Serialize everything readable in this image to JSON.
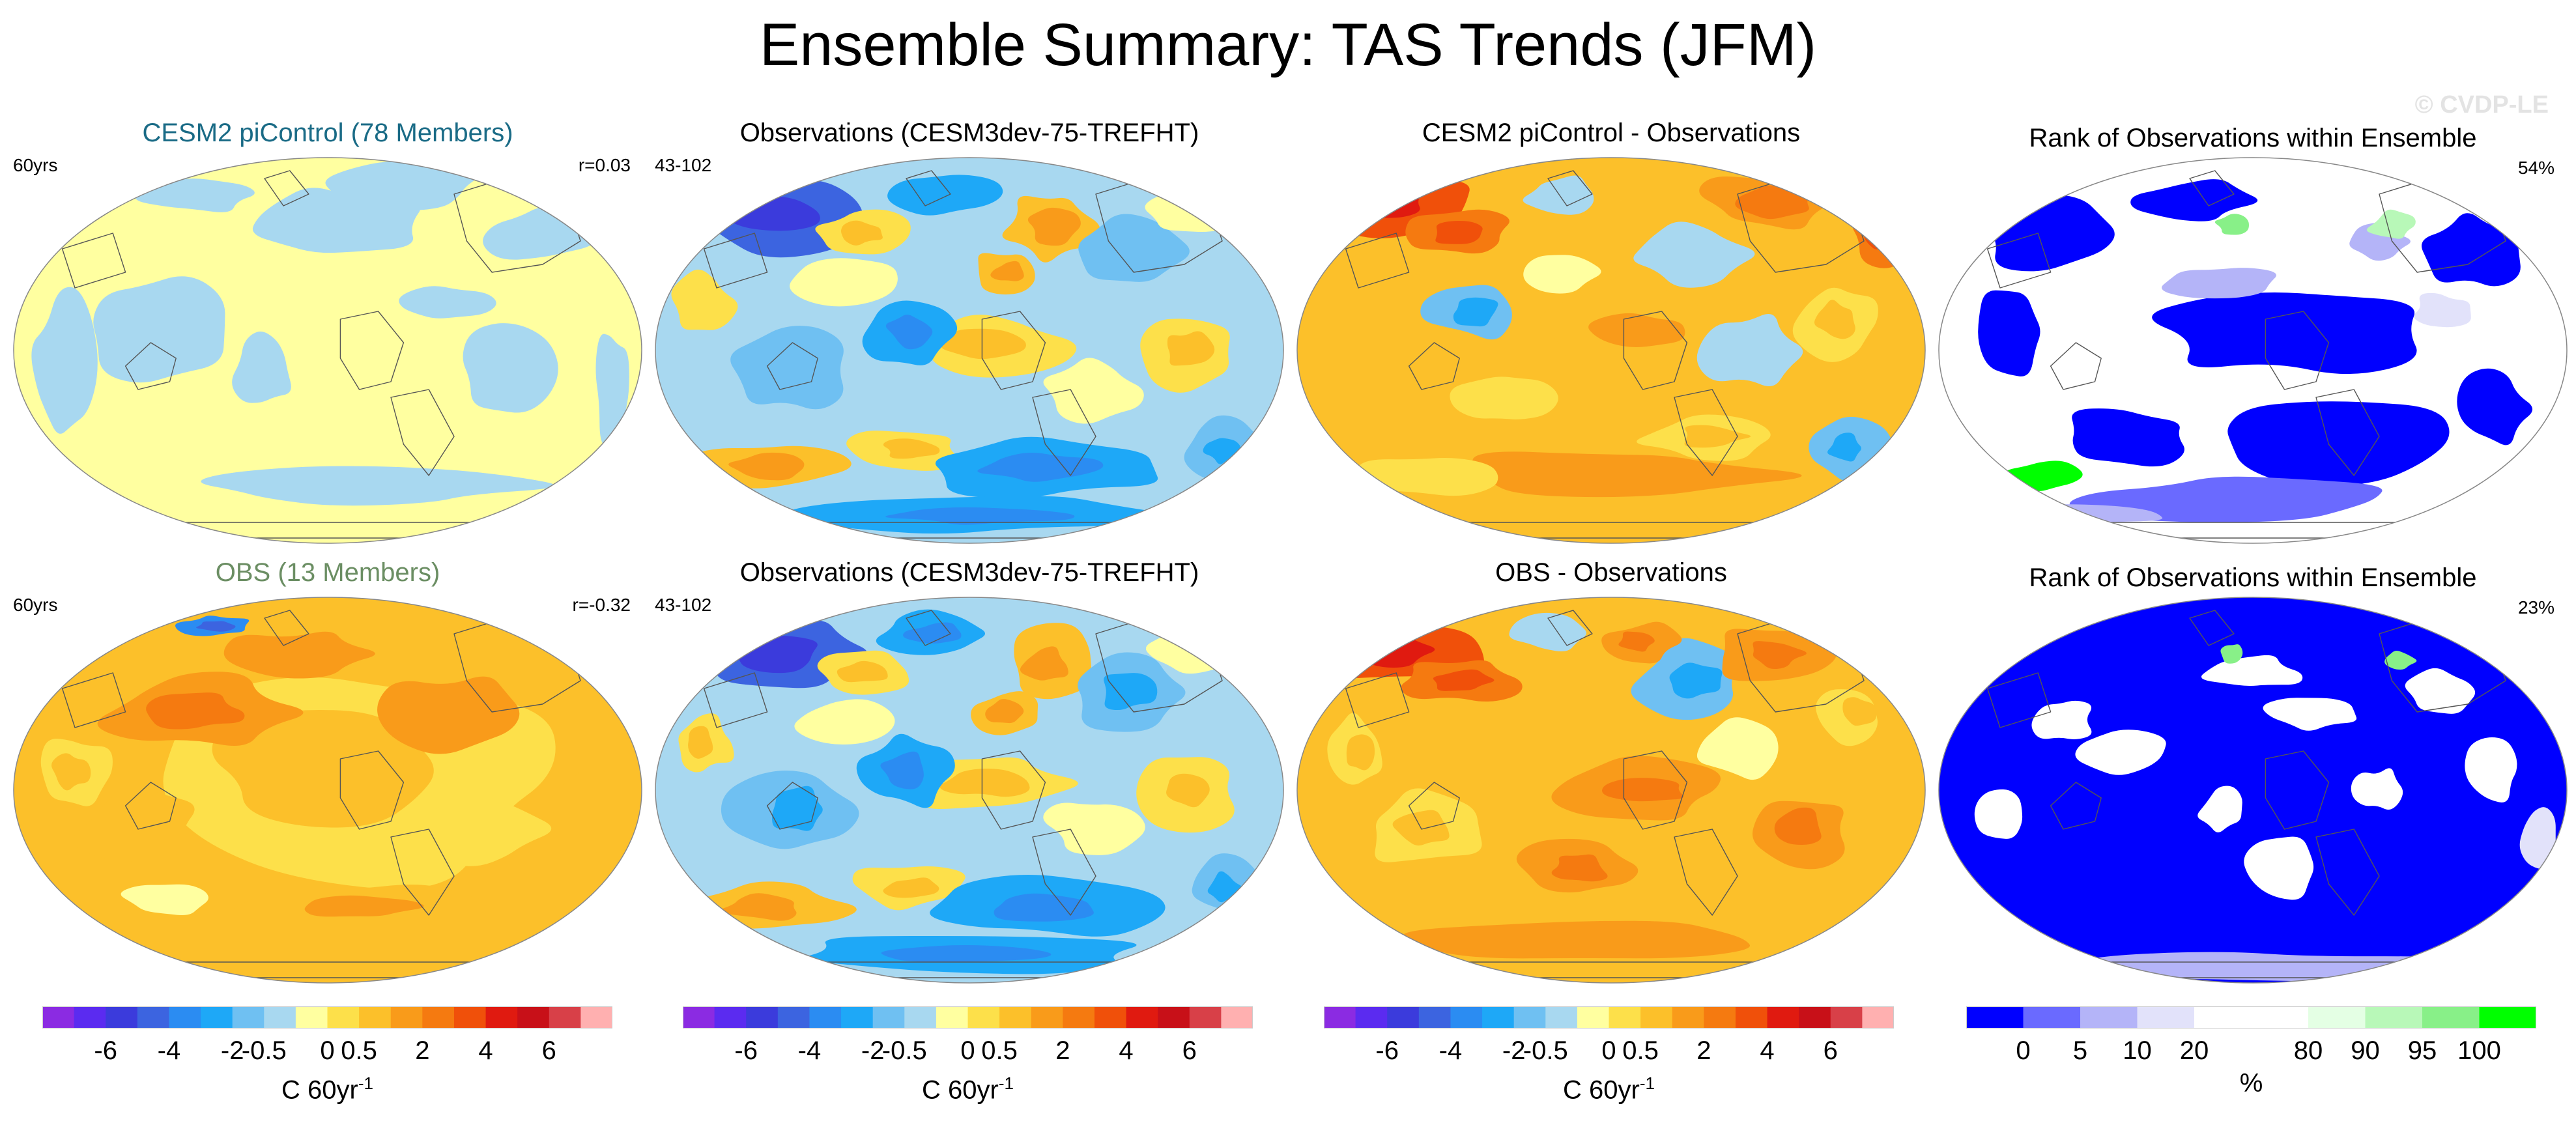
{
  "title": "Ensemble Summary: TAS Trends (JFM)",
  "copyright": "© CVDP-LE",
  "panels": [
    {
      "title": "CESM2 piControl (78 Members)",
      "title_color": "#1a6b86",
      "left_label": "60yrs",
      "right_label": "r=0.03",
      "style": "ens_mean"
    },
    {
      "title": "Observations (CESM3dev-75-TREFHT)",
      "title_color": "#000000",
      "left_label": "43-102",
      "right_label": "",
      "style": "obs"
    },
    {
      "title": "CESM2 piControl - Observations",
      "title_color": "#000000",
      "left_label": "",
      "right_label": "",
      "style": "diff"
    },
    {
      "title": "Rank of Observations within Ensemble",
      "title_color": "#000000",
      "left_label": "",
      "right_label": "54%",
      "style": "rank1"
    },
    {
      "title": "OBS (13 Members)",
      "title_color": "#6b8e63",
      "left_label": "60yrs",
      "right_label": "r=-0.32",
      "style": "obs_ens"
    },
    {
      "title": "Observations (CESM3dev-75-TREFHT)",
      "title_color": "#000000",
      "left_label": "43-102",
      "right_label": "",
      "style": "obs"
    },
    {
      "title": "OBS - Observations",
      "title_color": "#000000",
      "left_label": "",
      "right_label": "",
      "style": "diff2"
    },
    {
      "title": "Rank of Observations within Ensemble",
      "title_color": "#000000",
      "left_label": "",
      "right_label": "23%",
      "style": "rank2"
    }
  ],
  "temp_colorbar": {
    "colors": [
      "#8b2be2",
      "#5b2bf0",
      "#3b3bdc",
      "#3c64e0",
      "#2b8cf2",
      "#1ea8f7",
      "#6fc0f2",
      "#a8d8f0",
      "#ffffa0",
      "#fde04a",
      "#fcc02a",
      "#f99b1a",
      "#f57a10",
      "#f0500a",
      "#e01a10",
      "#c81018",
      "#d84048",
      "#ffb0b0"
    ],
    "ticks": [
      "-6",
      "-4",
      "-2",
      "-0.5",
      "0",
      "0.5",
      "2",
      "4",
      "6"
    ],
    "unit": "C 60yr",
    "unit_sup": "-1"
  },
  "rank_colorbar": {
    "colors": [
      "#0000ff",
      "#6a6aff",
      "#b4b4f8",
      "#e2e2fa",
      "#ffffff",
      "#ffffff",
      "#e4ffe4",
      "#b8f8b8",
      "#88f088",
      "#00ff00"
    ],
    "ticks": [
      "0",
      "5",
      "10",
      "20",
      "80",
      "90",
      "95",
      "100"
    ],
    "unit": "%"
  },
  "palette": {
    "coast": "#555555",
    "border": "#888888"
  }
}
